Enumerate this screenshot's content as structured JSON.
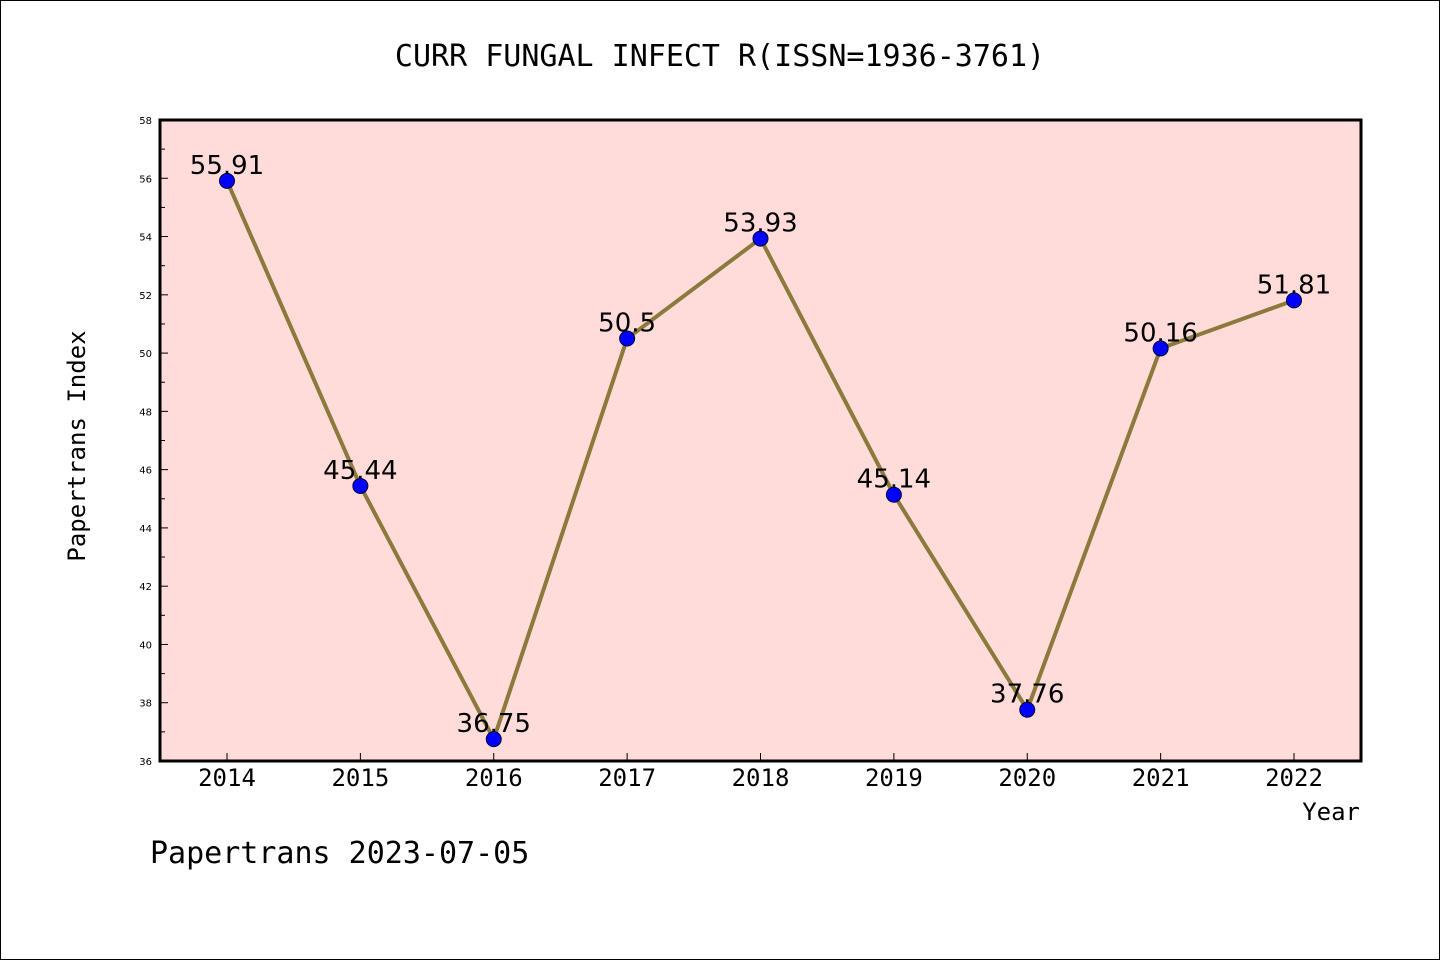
{
  "chart_data": {
    "type": "line",
    "title": "CURR FUNGAL INFECT R(ISSN=1936-3761)",
    "xlabel": "Year",
    "ylabel": "Papertrans Index",
    "categories": [
      "2014",
      "2015",
      "2016",
      "2017",
      "2018",
      "2019",
      "2020",
      "2021",
      "2022"
    ],
    "values": [
      55.91,
      45.44,
      36.75,
      50.5,
      53.93,
      45.14,
      37.76,
      50.16,
      51.81
    ],
    "data_labels": [
      "55.91",
      "45.44",
      "36.75",
      "50.5",
      "53.93",
      "45.14",
      "37.76",
      "50.16",
      "51.81"
    ],
    "ylim": [
      36,
      58
    ],
    "yticks": [
      "36",
      "38",
      "40",
      "42",
      "44",
      "46",
      "48",
      "50",
      "52",
      "54",
      "56",
      "58"
    ],
    "grid": false,
    "legend": "none",
    "colors": {
      "plot_background": "#ffdbd9",
      "line": "#8c7a3c",
      "marker": "#0000ff"
    }
  },
  "footer": "Papertrans 2023-07-05"
}
